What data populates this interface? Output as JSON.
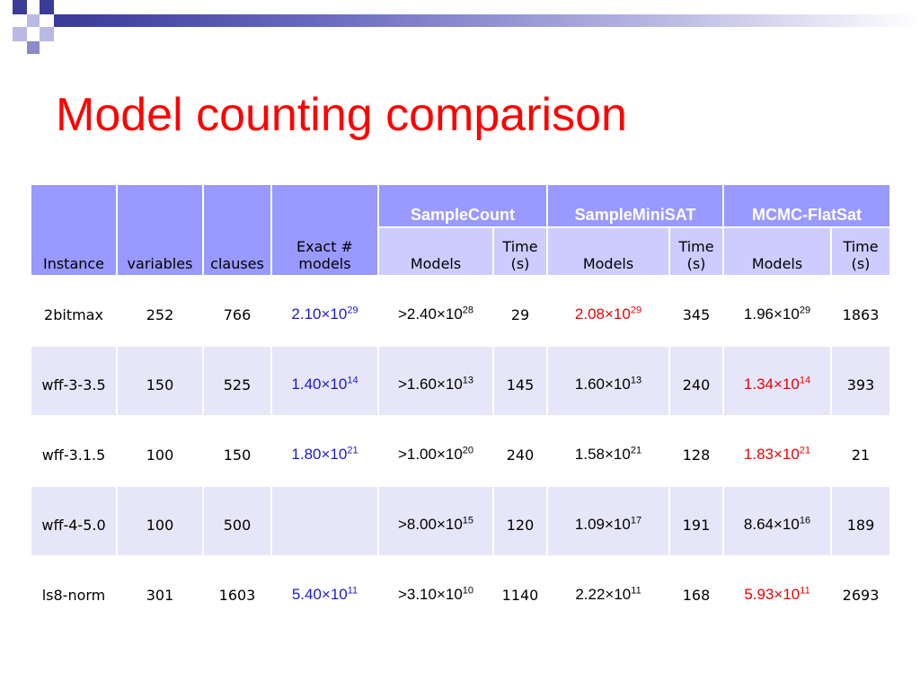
{
  "slide": {
    "title": "Model counting comparison"
  },
  "table": {
    "headers": {
      "instance": "Instance",
      "variables": "variables",
      "clauses": "clauses",
      "exact_line1": "Exact #",
      "exact_line2": "models",
      "group_samplecount": "SampleCount",
      "group_sampleminisat": "SampleMiniSAT",
      "group_mcmc": "MCMC-FlatSat",
      "models": "Models",
      "time_line1": "Time",
      "time_line2": "(s)"
    },
    "rows": [
      {
        "instance": "2bitmax",
        "variables": "252",
        "clauses": "766",
        "exact_mant": "2.10×10",
        "exact_exp": "29",
        "sc_mant": ">2.40×10",
        "sc_exp": "28",
        "sc_time": "29",
        "sm_mant": "2.08×10",
        "sm_exp": "29",
        "sm_time": "345",
        "mc_mant": "1.96×10",
        "mc_exp": "29",
        "mc_time": "1863"
      },
      {
        "instance": "wff-3-3.5",
        "variables": "150",
        "clauses": "525",
        "exact_mant": "1.40×10",
        "exact_exp": "14",
        "sc_mant": ">1.60×10",
        "sc_exp": "13",
        "sc_time": "145",
        "sm_mant": "1.60×10",
        "sm_exp": "13",
        "sm_time": "240",
        "mc_mant": "1.34×10",
        "mc_exp": "14",
        "mc_time": "393"
      },
      {
        "instance": "wff-3.1.5",
        "variables": "100",
        "clauses": "150",
        "exact_mant": "1.80×10",
        "exact_exp": "21",
        "sc_mant": ">1.00×10",
        "sc_exp": "20",
        "sc_time": "240",
        "sm_mant": "1.58×10",
        "sm_exp": "21",
        "sm_time": "128",
        "mc_mant": "1.83×10",
        "mc_exp": "21",
        "mc_time": "21"
      },
      {
        "instance": "wff-4-5.0",
        "variables": "100",
        "clauses": "500",
        "exact_mant": "",
        "exact_exp": "",
        "sc_mant": ">8.00×10",
        "sc_exp": "15",
        "sc_time": "120",
        "sm_mant": "1.09×10",
        "sm_exp": "17",
        "sm_time": "191",
        "mc_mant": "8.64×10",
        "mc_exp": "16",
        "mc_time": "189"
      },
      {
        "instance": "ls8-norm",
        "variables": "301",
        "clauses": "1603",
        "exact_mant": "5.40×10",
        "exact_exp": "11",
        "sc_mant": ">3.10×10",
        "sc_exp": "10",
        "sc_time": "1140",
        "sm_mant": "2.22×10",
        "sm_exp": "11",
        "sm_time": "168",
        "mc_mant": "5.93×10",
        "mc_exp": "11",
        "mc_time": "2693"
      }
    ]
  },
  "colors": {
    "title": "#ff0000",
    "header_dark": "#9999ff",
    "header_light": "#ccccff",
    "exact_highlight": "#1a1acc",
    "best_highlight": "#ee0000"
  }
}
